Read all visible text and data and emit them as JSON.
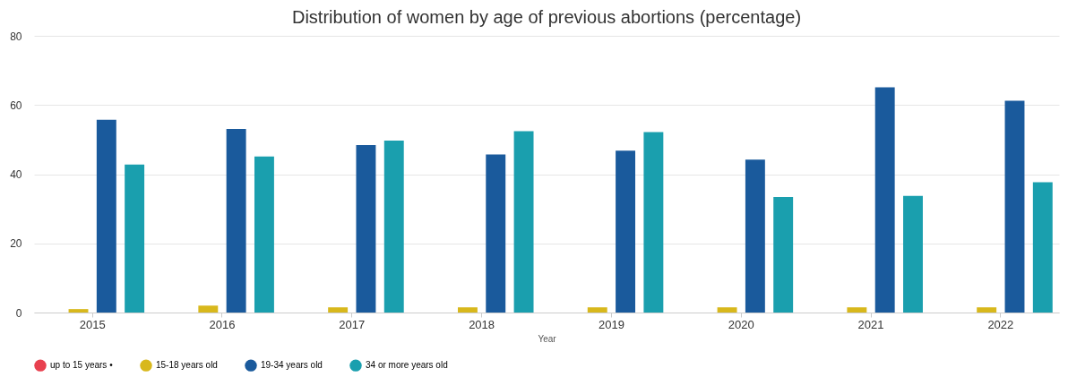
{
  "chart_data": {
    "type": "bar",
    "title": "Distribution of women by age of previous abortions (percentage)",
    "xlabel": "Year",
    "categories": [
      "2015",
      "2016",
      "2017",
      "2018",
      "2019",
      "2020",
      "2021",
      "2022"
    ],
    "series": [
      {
        "name": "up to 15 years •",
        "color": "#e8404f",
        "values": [
          0,
          0,
          0,
          0,
          0,
          0,
          0,
          0
        ]
      },
      {
        "name": "15-18 years old",
        "color": "#d8b81c",
        "values": [
          1,
          2,
          1.5,
          1.5,
          1.5,
          1.5,
          1.5,
          1.5
        ]
      },
      {
        "name": "19-34 years old",
        "color": "#1a5a9c",
        "values": [
          55.7,
          53.1,
          48.4,
          45.7,
          46.8,
          44.2,
          65.1,
          61.2
        ]
      },
      {
        "name": "34 or more years old",
        "color": "#1a9fae",
        "values": [
          42.8,
          45.1,
          49.7,
          52.4,
          52.2,
          33.4,
          33.7,
          37.7
        ]
      }
    ],
    "ylim": [
      0,
      80
    ],
    "yticks": [
      0,
      20,
      40,
      60,
      80
    ],
    "grid": "y",
    "legend": "bottom"
  }
}
